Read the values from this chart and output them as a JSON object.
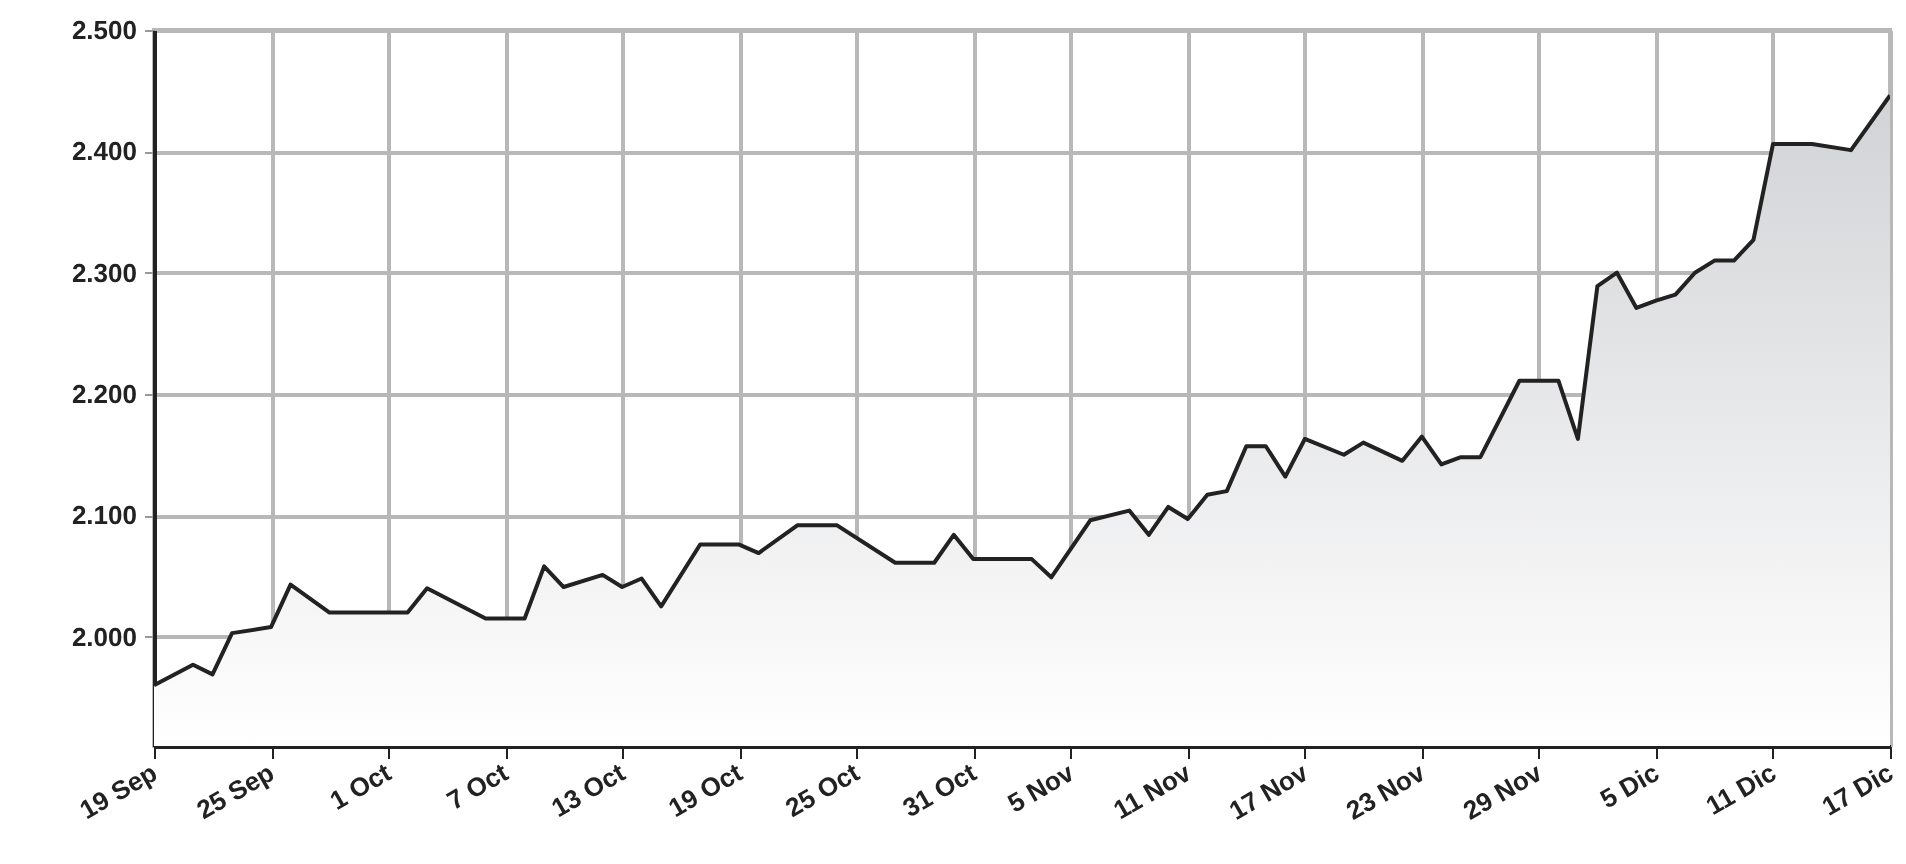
{
  "chart_data": {
    "type": "area",
    "x": [
      "--09-19",
      "--09-21",
      "--09-22",
      "--09-23",
      "--09-25",
      "--09-26",
      "--09-28",
      "--10-02",
      "--10-03",
      "--10-06",
      "--10-08",
      "--10-09",
      "--10-10",
      "--10-12",
      "--10-13",
      "--10-14",
      "--10-15",
      "--10-17",
      "--10-19",
      "--10-20",
      "--10-22",
      "--10-24",
      "--10-27",
      "--10-29",
      "--10-30",
      "--10-31",
      "--11-03",
      "--11-04",
      "--11-06",
      "--11-08",
      "--11-09",
      "--11-10",
      "--11-11",
      "--11-12",
      "--11-13",
      "--11-14",
      "--11-15",
      "--11-16",
      "--11-17",
      "--11-19",
      "--11-20",
      "--11-22",
      "--11-23",
      "--11-24",
      "--11-25",
      "--11-26",
      "--11-28",
      "--11-30",
      "--12-01",
      "--12-02",
      "--12-03",
      "--12-04",
      "--12-05",
      "--12-06",
      "--12-07",
      "--12-08",
      "--12-09",
      "--12-10",
      "--12-11",
      "--12-13",
      "--12-15",
      "--12-17"
    ],
    "series": [
      {
        "color": "#222222",
        "values": [
          1960,
          1977,
          1969,
          2003,
          2008,
          2043,
          2020,
          2020,
          2040,
          2015,
          2015,
          2058,
          2041,
          2051,
          2041,
          2048,
          2025,
          2076,
          2076,
          2069,
          2092,
          2092,
          2061,
          2061,
          2084,
          2064,
          2064,
          2049,
          2096,
          2104,
          2084,
          2107,
          2097,
          2117,
          2120,
          2157,
          2157,
          2132,
          2163,
          2150,
          2160,
          2145,
          2165,
          2142,
          2148,
          2148,
          2211,
          2211,
          2163,
          2289,
          2300,
          2271,
          2277,
          2282,
          2300,
          2310,
          2310,
          2327,
          2406,
          2406,
          2401,
          2446
        ]
      }
    ],
    "xlim": [
      "--09-19",
      "--12-17"
    ],
    "xticks": [
      {
        "value": "--09-19",
        "label": "19 Sep"
      },
      {
        "value": "--09-25",
        "label": "25 Sep"
      },
      {
        "value": "--10-01",
        "label": "1 Oct"
      },
      {
        "value": "--10-07",
        "label": "7 Oct"
      },
      {
        "value": "--10-13",
        "label": "13 Oct"
      },
      {
        "value": "--10-19",
        "label": "19 Oct"
      },
      {
        "value": "--10-25",
        "label": "25 Oct"
      },
      {
        "value": "--10-31",
        "label": "31 Oct"
      },
      {
        "value": "--11-05",
        "label": "5 Nov"
      },
      {
        "value": "--11-11",
        "label": "11 Nov"
      },
      {
        "value": "--11-17",
        "label": "17 Nov"
      },
      {
        "value": "--11-23",
        "label": "23 Nov"
      },
      {
        "value": "--11-29",
        "label": "29 Nov"
      },
      {
        "value": "--12-05",
        "label": "5 Dic"
      },
      {
        "value": "--12-11",
        "label": "11 Dic"
      },
      {
        "value": "--12-17",
        "label": "17 Dic"
      }
    ],
    "ylim": [
      1910,
      2500
    ],
    "yticks": [
      {
        "value": 2000,
        "label": "2.000"
      },
      {
        "value": 2100,
        "label": "2.100"
      },
      {
        "value": 2200,
        "label": "2.200"
      },
      {
        "value": 2300,
        "label": "2.300"
      },
      {
        "value": 2400,
        "label": "2.400"
      },
      {
        "value": 2500,
        "label": "2.500"
      }
    ],
    "grid": true
  }
}
